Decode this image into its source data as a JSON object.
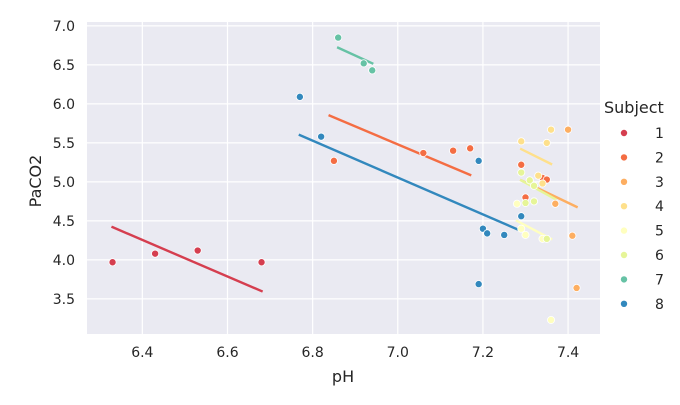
{
  "chart_data": {
    "type": "scatter",
    "xlabel": "pH",
    "ylabel": "PaCO2",
    "xlim": [
      6.27,
      7.475
    ],
    "ylim": [
      3.05,
      7.05
    ],
    "xticks": [
      "6.4",
      "6.6",
      "6.8",
      "7.0",
      "7.2",
      "7.4"
    ],
    "yticks": [
      "3.5",
      "4.0",
      "4.5",
      "5.0",
      "5.5",
      "6.0",
      "6.5",
      "7.0"
    ],
    "grid": true,
    "background": "#eaeaf2",
    "legend": {
      "title": "Subject",
      "placement": "right"
    },
    "series": [
      {
        "name": "1",
        "color": "#d53e4f",
        "points": [
          [
            6.33,
            3.97
          ],
          [
            6.43,
            4.08
          ],
          [
            6.53,
            4.12
          ],
          [
            6.68,
            3.97
          ]
        ],
        "fit": [
          [
            6.33,
            4.42
          ],
          [
            6.68,
            3.6
          ]
        ]
      },
      {
        "name": "2",
        "color": "#f46d43",
        "points": [
          [
            6.85,
            5.27
          ],
          [
            7.06,
            5.37
          ],
          [
            7.13,
            5.4
          ],
          [
            7.17,
            5.43
          ],
          [
            7.29,
            5.22
          ],
          [
            7.3,
            4.8
          ],
          [
            7.34,
            5.05
          ],
          [
            7.35,
            5.03
          ]
        ],
        "fit": [
          [
            6.84,
            5.85
          ],
          [
            7.17,
            5.09
          ]
        ]
      },
      {
        "name": "3",
        "color": "#fdae61",
        "points": [
          [
            7.4,
            5.67
          ],
          [
            7.37,
            4.72
          ],
          [
            7.41,
            4.31
          ],
          [
            7.42,
            3.64
          ]
        ],
        "fit": [
          [
            7.29,
            5.02
          ],
          [
            7.42,
            4.68
          ]
        ]
      },
      {
        "name": "4",
        "color": "#fee08b",
        "points": [
          [
            7.36,
            5.67
          ],
          [
            7.35,
            5.5
          ],
          [
            7.29,
            5.52
          ],
          [
            7.33,
            5.08
          ],
          [
            7.34,
            4.98
          ]
        ],
        "fit": [
          [
            7.29,
            5.42
          ],
          [
            7.36,
            5.23
          ]
        ]
      },
      {
        "name": "5",
        "color": "#ffffbf",
        "points": [
          [
            7.28,
            4.72
          ],
          [
            7.29,
            4.4
          ],
          [
            7.3,
            4.32
          ],
          [
            7.34,
            4.27
          ],
          [
            7.36,
            3.23
          ]
        ],
        "fit": [
          [
            7.28,
            4.5
          ],
          [
            7.36,
            4.27
          ]
        ]
      },
      {
        "name": "6",
        "color": "#e6f598",
        "points": [
          [
            7.29,
            5.12
          ],
          [
            7.31,
            5.02
          ],
          [
            7.32,
            4.95
          ],
          [
            7.3,
            4.73
          ],
          [
            7.32,
            4.75
          ],
          [
            7.35,
            4.27
          ]
        ],
        "fit": [
          [
            7.29,
            5.02
          ],
          [
            7.37,
            4.78
          ]
        ]
      },
      {
        "name": "7",
        "color": "#66c2a5",
        "points": [
          [
            6.86,
            6.85
          ],
          [
            6.92,
            6.52
          ],
          [
            6.94,
            6.43
          ]
        ],
        "fit": [
          [
            6.86,
            6.72
          ],
          [
            6.94,
            6.52
          ]
        ]
      },
      {
        "name": "8",
        "color": "#3288bd",
        "points": [
          [
            6.77,
            6.09
          ],
          [
            6.82,
            5.58
          ],
          [
            7.19,
            5.27
          ],
          [
            7.2,
            4.4
          ],
          [
            7.21,
            4.34
          ],
          [
            7.25,
            4.32
          ],
          [
            7.29,
            4.56
          ],
          [
            7.19,
            3.69
          ]
        ],
        "fit": [
          [
            6.77,
            5.6
          ],
          [
            7.29,
            4.37
          ]
        ]
      }
    ]
  }
}
